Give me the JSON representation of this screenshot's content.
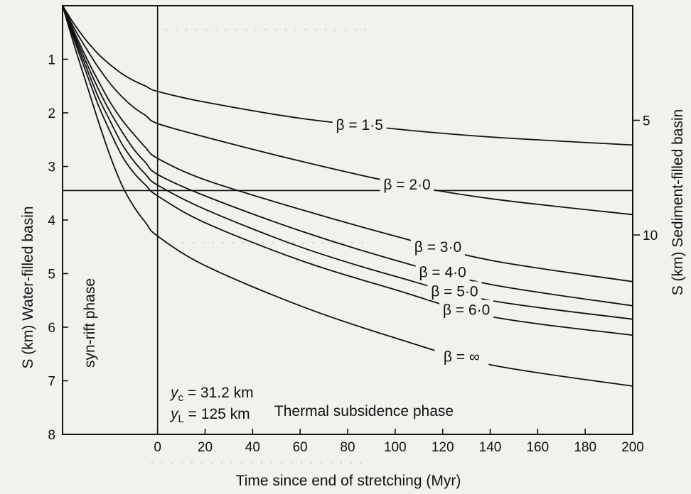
{
  "chart_data": {
    "type": "line",
    "xlabel": "Time since end of stretching (Myr)",
    "ylabel_left": "S (km) Water-filled basin",
    "ylabel_right": "S (km) Sediment-filled basin",
    "xlim": [
      -40,
      200
    ],
    "ylim_left": [
      0,
      8
    ],
    "ylim_right": [
      0,
      18.7
    ],
    "x_ticks": [
      0,
      20,
      40,
      60,
      80,
      100,
      120,
      140,
      160,
      180,
      200
    ],
    "y_ticks_left": [
      1,
      2,
      3,
      4,
      5,
      6,
      7,
      8
    ],
    "y_ticks_right": [
      5,
      10
    ],
    "grid": false,
    "reference_lines": {
      "vertical_x": 0,
      "horizontal_y": 3.45
    },
    "annotations": {
      "syn_rift": "syn-rift phase",
      "thermal": "Thermal subsidence phase",
      "yc_label": "y",
      "yc_sub": "c",
      "yc_value": " = 31.2 km",
      "yl_label": "y",
      "yl_sub": "L",
      "yl_value": " = 125 km"
    },
    "series": [
      {
        "name": "β = 1·5",
        "x": [
          -40,
          -35,
          -30,
          -25,
          -20,
          -15,
          -10,
          -5,
          0,
          20,
          60,
          100,
          140,
          200
        ],
        "y": [
          0,
          0.35,
          0.65,
          0.9,
          1.1,
          1.27,
          1.4,
          1.5,
          1.6,
          1.8,
          2.1,
          2.3,
          2.45,
          2.6
        ]
      },
      {
        "name": "β = 2·0",
        "x": [
          -40,
          -35,
          -30,
          -25,
          -20,
          -15,
          -10,
          -5,
          0,
          20,
          60,
          100,
          140,
          200
        ],
        "y": [
          0,
          0.43,
          0.8,
          1.15,
          1.45,
          1.7,
          1.9,
          2.05,
          2.2,
          2.45,
          2.9,
          3.3,
          3.6,
          3.9
        ]
      },
      {
        "name": "β = 3·0",
        "x": [
          -40,
          -35,
          -30,
          -25,
          -20,
          -15,
          -10,
          -5,
          0,
          20,
          60,
          100,
          140,
          200
        ],
        "y": [
          0,
          0.5,
          0.97,
          1.4,
          1.8,
          2.13,
          2.4,
          2.65,
          2.85,
          3.25,
          3.8,
          4.3,
          4.75,
          5.15
        ]
      },
      {
        "name": "β = 4·0",
        "x": [
          -40,
          -35,
          -30,
          -25,
          -20,
          -15,
          -10,
          -5,
          0,
          20,
          60,
          100,
          140,
          200
        ],
        "y": [
          0,
          0.55,
          1.06,
          1.55,
          1.98,
          2.35,
          2.68,
          2.93,
          3.15,
          3.55,
          4.2,
          4.75,
          5.2,
          5.6
        ]
      },
      {
        "name": "β = 5·0",
        "x": [
          -40,
          -35,
          -30,
          -25,
          -20,
          -15,
          -10,
          -5,
          0,
          20,
          60,
          100,
          140,
          200
        ],
        "y": [
          0,
          0.6,
          1.15,
          1.7,
          2.15,
          2.58,
          2.9,
          3.15,
          3.35,
          3.8,
          4.5,
          5.05,
          5.5,
          5.85
        ]
      },
      {
        "name": "β = 6·0",
        "x": [
          -40,
          -35,
          -30,
          -25,
          -20,
          -15,
          -10,
          -5,
          0,
          20,
          60,
          100,
          140,
          200
        ],
        "y": [
          0,
          0.65,
          1.25,
          1.85,
          2.35,
          2.8,
          3.12,
          3.35,
          3.55,
          4.05,
          4.75,
          5.3,
          5.8,
          6.15
        ]
      },
      {
        "name": "β = ∞",
        "x": [
          -40,
          -35,
          -30,
          -25,
          -20,
          -15,
          -10,
          -5,
          0,
          20,
          60,
          100,
          140,
          200
        ],
        "y": [
          0,
          0.75,
          1.45,
          2.15,
          2.8,
          3.35,
          3.75,
          4.05,
          4.3,
          4.85,
          5.6,
          6.2,
          6.7,
          7.1
        ]
      }
    ],
    "series_label_x": [
      85,
      105,
      118,
      120,
      125,
      130,
      128
    ]
  }
}
